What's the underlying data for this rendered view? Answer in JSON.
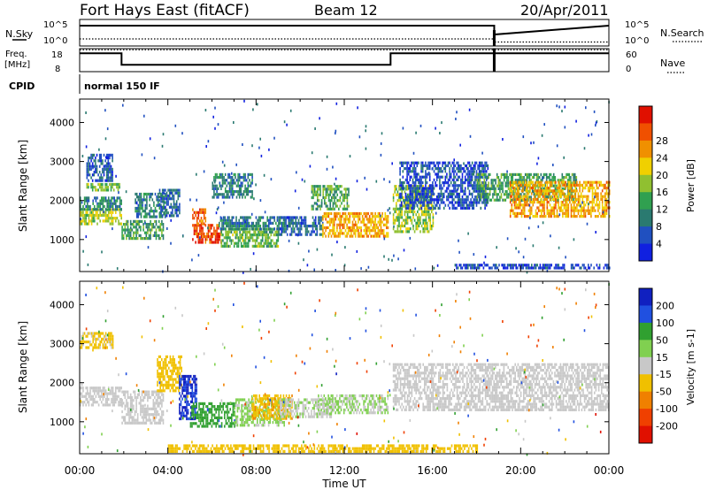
{
  "header": {
    "station": "Fort Hays East (fitACF)",
    "beam": "Beam 12",
    "date": "20/Apr/2011"
  },
  "chart_data": [
    {
      "id": "nsky-nsearch",
      "type": "line",
      "left_label": "N.Sky",
      "right_label": "N.Search",
      "left_ticks": [
        "10^5",
        "10^0"
      ],
      "right_ticks": [
        "10^5",
        "10^0"
      ],
      "series": [
        {
          "style": "solid",
          "x": [
            0,
            18.8,
            18.8,
            24
          ],
          "y": [
            4.6,
            4.6,
            2.6,
            4.6
          ]
        },
        {
          "style": "dotted",
          "x": [
            0,
            18.8,
            18.8,
            24
          ],
          "y": [
            1.6,
            1.6,
            0.9,
            0.9
          ]
        }
      ],
      "ylim": [
        0,
        6
      ]
    },
    {
      "id": "freq-nave",
      "type": "line",
      "left_label": "Freq.",
      "left_unit": "[MHz]",
      "right_label": "Nave",
      "left_ticks": [
        18,
        8
      ],
      "right_ticks": [
        60,
        0
      ],
      "series": [
        {
          "style": "solid",
          "x": [
            0,
            1.9,
            1.9,
            14.1,
            14.1,
            24
          ],
          "y": [
            16,
            16,
            11,
            11,
            16,
            16
          ]
        },
        {
          "style": "dotted",
          "x": [
            0,
            24
          ],
          "y": [
            17.5,
            17.5
          ]
        }
      ],
      "markers_x": [
        18.8
      ],
      "ylim": [
        8,
        18
      ]
    },
    {
      "id": "cpid",
      "type": "table",
      "label": "CPID",
      "value": "normal 150 IF"
    },
    {
      "id": "power",
      "type": "heatmap",
      "ylabel": "Slant Range [km]",
      "yticks": [
        1000,
        2000,
        3000,
        4000
      ],
      "ylim": [
        180,
        4600
      ],
      "xlim": [
        0,
        24
      ],
      "colorbar_label": "Power [dB]",
      "colorbar_ticks": [
        4,
        8,
        12,
        16,
        20,
        24,
        28
      ],
      "colorbar_colors": [
        "#1020e0",
        "#2050c0",
        "#2a7a70",
        "#30a050",
        "#90c030",
        "#f0d000",
        "#f09000",
        "#f05000",
        "#e01000"
      ],
      "clim": [
        0,
        32
      ],
      "bands": [
        {
          "t": [
            0.0,
            1.9
          ],
          "rng": [
            1400,
            1800
          ],
          "p": 17
        },
        {
          "t": [
            0.0,
            1.9
          ],
          "rng": [
            1800,
            2100
          ],
          "p": 10
        },
        {
          "t": [
            0.3,
            1.8
          ],
          "rng": [
            2300,
            2450
          ],
          "p": 14
        },
        {
          "t": [
            0.3,
            1.5
          ],
          "rng": [
            2500,
            3200
          ],
          "p": 6
        },
        {
          "t": [
            1.9,
            3.8
          ],
          "rng": [
            1000,
            1500
          ],
          "p": 12
        },
        {
          "t": [
            2.5,
            3.9
          ],
          "rng": [
            1600,
            2200
          ],
          "p": 9
        },
        {
          "t": [
            3.6,
            4.5
          ],
          "rng": [
            1600,
            2300
          ],
          "p": 7
        },
        {
          "t": [
            5.1,
            6.4
          ],
          "rng": [
            900,
            1400
          ],
          "p": 28
        },
        {
          "t": [
            5.1,
            5.7
          ],
          "rng": [
            1400,
            1800
          ],
          "p": 25
        },
        {
          "t": [
            6.4,
            9.0
          ],
          "rng": [
            850,
            1300
          ],
          "p": 14
        },
        {
          "t": [
            6.3,
            9.8
          ],
          "rng": [
            1300,
            1600
          ],
          "p": 9
        },
        {
          "t": [
            6.0,
            7.8
          ],
          "rng": [
            2100,
            2700
          ],
          "p": 9
        },
        {
          "t": [
            9.0,
            11.0
          ],
          "rng": [
            1100,
            1600
          ],
          "p": 7
        },
        {
          "t": [
            10.5,
            12.2
          ],
          "rng": [
            1800,
            2400
          ],
          "p": 13
        },
        {
          "t": [
            11.0,
            14.0
          ],
          "rng": [
            1100,
            1700
          ],
          "p": 22
        },
        {
          "t": [
            14.2,
            16.0
          ],
          "rng": [
            1200,
            2400
          ],
          "p": 16
        },
        {
          "t": [
            14.5,
            18.5
          ],
          "rng": [
            1800,
            3000
          ],
          "p": 5
        },
        {
          "t": [
            18.0,
            22.5
          ],
          "rng": [
            2000,
            2700
          ],
          "p": 12
        },
        {
          "t": [
            19.5,
            24.0
          ],
          "rng": [
            1600,
            2500
          ],
          "p": 22
        },
        {
          "t": [
            17.0,
            24.0
          ],
          "rng": [
            250,
            380
          ],
          "p": 5
        }
      ]
    },
    {
      "id": "velocity",
      "type": "heatmap",
      "ylabel": "Slant Range [km]",
      "yticks": [
        1000,
        2000,
        3000,
        4000
      ],
      "ylim": [
        180,
        4600
      ],
      "xlim": [
        0,
        24
      ],
      "colorbar_label": "Velocity [m s-1]",
      "colorbar_ticks": [
        200,
        100,
        50,
        15,
        -15,
        -50,
        -100,
        -200
      ],
      "colorbar_colors": [
        "#1020c0",
        "#2050e0",
        "#30a030",
        "#80d050",
        "#c8c8c8",
        "#f0c000",
        "#f08000",
        "#f04000",
        "#e01000"
      ],
      "clim": [
        -250,
        250
      ],
      "bands": [
        {
          "t": [
            0.0,
            1.9
          ],
          "rng": [
            1400,
            1900
          ],
          "v": 0
        },
        {
          "t": [
            0.0,
            1.5
          ],
          "rng": [
            2900,
            3300
          ],
          "v": -40
        },
        {
          "t": [
            1.9,
            3.8
          ],
          "rng": [
            1000,
            1800
          ],
          "v": 0
        },
        {
          "t": [
            3.5,
            4.6
          ],
          "rng": [
            1800,
            2700
          ],
          "v": -60
        },
        {
          "t": [
            4.5,
            5.3
          ],
          "rng": [
            1100,
            2200
          ],
          "v": 200
        },
        {
          "t": [
            5.0,
            7.0
          ],
          "rng": [
            900,
            1500
          ],
          "v": 120
        },
        {
          "t": [
            7.0,
            9.3
          ],
          "rng": [
            900,
            1600
          ],
          "v": 40
        },
        {
          "t": [
            7.8,
            9.6
          ],
          "rng": [
            1100,
            1700
          ],
          "v": -70
        },
        {
          "t": [
            9.0,
            11.5
          ],
          "rng": [
            1100,
            1600
          ],
          "v": 20
        },
        {
          "t": [
            10.8,
            14.0
          ],
          "rng": [
            1200,
            1700
          ],
          "v": 30
        },
        {
          "t": [
            14.2,
            24.0
          ],
          "rng": [
            1300,
            2500
          ],
          "v": 0
        },
        {
          "t": [
            4.0,
            18.0
          ],
          "rng": [
            250,
            420
          ],
          "v": -50
        }
      ]
    }
  ],
  "time_axis": {
    "label": "Time UT",
    "ticks": [
      "00:00",
      "04:00",
      "08:00",
      "12:00",
      "16:00",
      "20:00",
      "00:00"
    ]
  },
  "colors": {
    "frame": "#000000",
    "text": "#000000"
  }
}
